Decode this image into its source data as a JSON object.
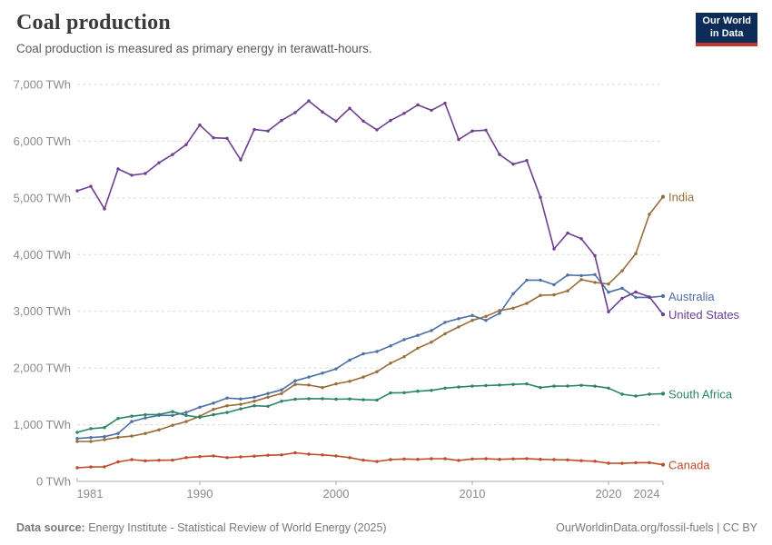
{
  "header": {
    "title": "Coal production",
    "subtitle": "Coal production is measured as primary energy in terawatt-hours.",
    "logo": {
      "line1": "Our World",
      "line2": "in Data",
      "bg": "#0c2d5a",
      "accent": "#c5372c"
    }
  },
  "footer": {
    "source_label": "Data source:",
    "source_text": " Energy Institute - Statistical Review of World Energy (2025)",
    "right_text": "OurWorldinData.org/fossil-fuels | CC BY"
  },
  "chart_data": {
    "type": "line",
    "title": "Coal production",
    "ylabel": "",
    "xlabel": "",
    "ylim": [
      0,
      7000
    ],
    "xlim": [
      1981,
      2024
    ],
    "grid": "horizontal-dashed",
    "legend_position": "end-of-line-labels",
    "y_ticks": [
      0,
      1000,
      2000,
      3000,
      4000,
      5000,
      6000,
      7000
    ],
    "y_tick_suffix": " TWh",
    "x_ticks": [
      1981,
      1990,
      2000,
      2010,
      2020,
      2024
    ],
    "x": [
      1981,
      1982,
      1983,
      1984,
      1985,
      1986,
      1987,
      1988,
      1989,
      1990,
      1991,
      1992,
      1993,
      1994,
      1995,
      1996,
      1997,
      1998,
      1999,
      2000,
      2001,
      2002,
      2003,
      2004,
      2005,
      2006,
      2007,
      2008,
      2009,
      2010,
      2011,
      2012,
      2013,
      2014,
      2015,
      2016,
      2017,
      2018,
      2019,
      2020,
      2021,
      2022,
      2023,
      2024
    ],
    "series": [
      {
        "name": "India",
        "color": "#996D39",
        "values": [
          705,
          705,
          737,
          775,
          800,
          845,
          910,
          990,
          1055,
          1150,
          1270,
          1335,
          1360,
          1415,
          1485,
          1550,
          1710,
          1700,
          1655,
          1720,
          1765,
          1840,
          1935,
          2085,
          2200,
          2350,
          2455,
          2605,
          2725,
          2840,
          2910,
          3015,
          3055,
          3140,
          3280,
          3290,
          3360,
          3560,
          3510,
          3480,
          3715,
          4015,
          4710,
          5020
        ]
      },
      {
        "name": "Australia",
        "color": "#4C6FA5",
        "values": [
          758,
          774,
          790,
          845,
          1055,
          1120,
          1165,
          1165,
          1217,
          1308,
          1380,
          1470,
          1455,
          1485,
          1550,
          1615,
          1775,
          1840,
          1910,
          1985,
          2140,
          2250,
          2290,
          2390,
          2500,
          2575,
          2660,
          2805,
          2870,
          2926,
          2840,
          2965,
          3310,
          3550,
          3550,
          3470,
          3640,
          3630,
          3647,
          3337,
          3407,
          3246,
          3246,
          3268
        ]
      },
      {
        "name": "United States",
        "color": "#6D3E91",
        "values": [
          5125,
          5205,
          4805,
          5510,
          5400,
          5430,
          5620,
          5765,
          5940,
          6285,
          6060,
          6050,
          5670,
          6205,
          6180,
          6365,
          6505,
          6710,
          6515,
          6355,
          6580,
          6355,
          6200,
          6365,
          6490,
          6640,
          6545,
          6670,
          6030,
          6180,
          6195,
          5765,
          5595,
          5660,
          5010,
          4100,
          4380,
          4280,
          3980,
          2990,
          3230,
          3340,
          3255,
          2945
        ]
      },
      {
        "name": "South Africa",
        "color": "#2C8465",
        "values": [
          865,
          930,
          950,
          1110,
          1150,
          1175,
          1180,
          1230,
          1165,
          1130,
          1175,
          1215,
          1280,
          1335,
          1325,
          1415,
          1450,
          1460,
          1460,
          1450,
          1455,
          1440,
          1435,
          1560,
          1565,
          1590,
          1605,
          1645,
          1665,
          1680,
          1690,
          1700,
          1710,
          1720,
          1655,
          1680,
          1682,
          1695,
          1680,
          1645,
          1538,
          1506,
          1538,
          1548
        ]
      },
      {
        "name": "Canada",
        "color": "#BF4B28",
        "values": [
          240,
          255,
          258,
          345,
          385,
          363,
          373,
          375,
          420,
          437,
          450,
          420,
          432,
          445,
          462,
          468,
          505,
          480,
          468,
          450,
          420,
          375,
          350,
          385,
          395,
          390,
          400,
          400,
          370,
          395,
          400,
          390,
          398,
          402,
          390,
          384,
          379,
          365,
          355,
          320,
          318,
          330,
          332,
          295
        ]
      }
    ]
  }
}
